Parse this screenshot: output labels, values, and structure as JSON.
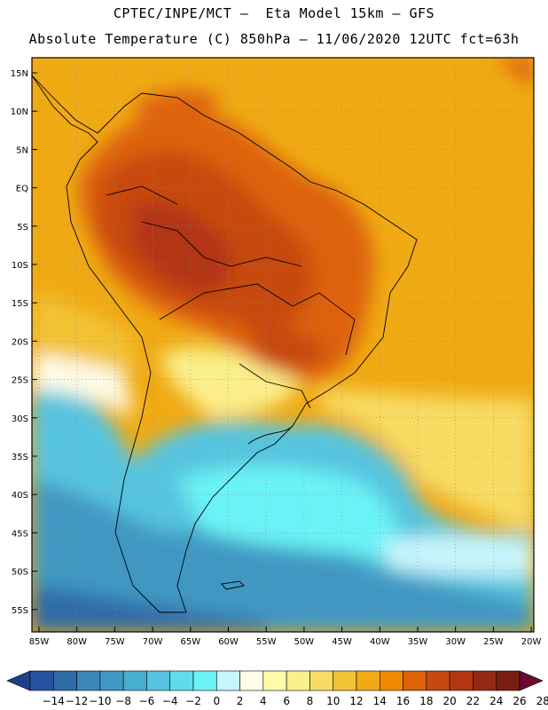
{
  "title_line1": "CPTEC/INPE/MCT –  Eta Model 15km – GFS",
  "title_line2": "Absolute Temperature (C) 850hPa – 11/06/2020 12UTC fct=63h",
  "lat_ticks": [
    "15N",
    "10N",
    "5N",
    "EQ",
    "5S",
    "10S",
    "15S",
    "20S",
    "25S",
    "30S",
    "35S",
    "40S",
    "45S",
    "50S",
    "55S"
  ],
  "lon_ticks": [
    "85W",
    "80W",
    "75W",
    "70W",
    "65W",
    "60W",
    "55W",
    "50W",
    "45W",
    "40W",
    "35W",
    "30W",
    "25W",
    "20W"
  ],
  "colorbar": {
    "labels": [
      "-14",
      "-12",
      "-10",
      "-8",
      "-6",
      "-4",
      "-2",
      "0",
      "2",
      "4",
      "6",
      "8",
      "10",
      "12",
      "14",
      "16",
      "18",
      "20",
      "22",
      "24",
      "26",
      "28"
    ],
    "colors": [
      "#1f3f8a",
      "#2653a0",
      "#2f6aa9",
      "#3a86b8",
      "#3f98c2",
      "#47aed0",
      "#56c4df",
      "#5fdcea",
      "#6bf3f6",
      "#c8f4fb",
      "#fffbe6",
      "#fffaa8",
      "#fbef8a",
      "#f7dc64",
      "#f2c236",
      "#f0aa14",
      "#f08a00",
      "#de6208",
      "#c84810",
      "#b23612",
      "#952a14",
      "#7a1c12",
      "#6a0a30"
    ]
  }
}
